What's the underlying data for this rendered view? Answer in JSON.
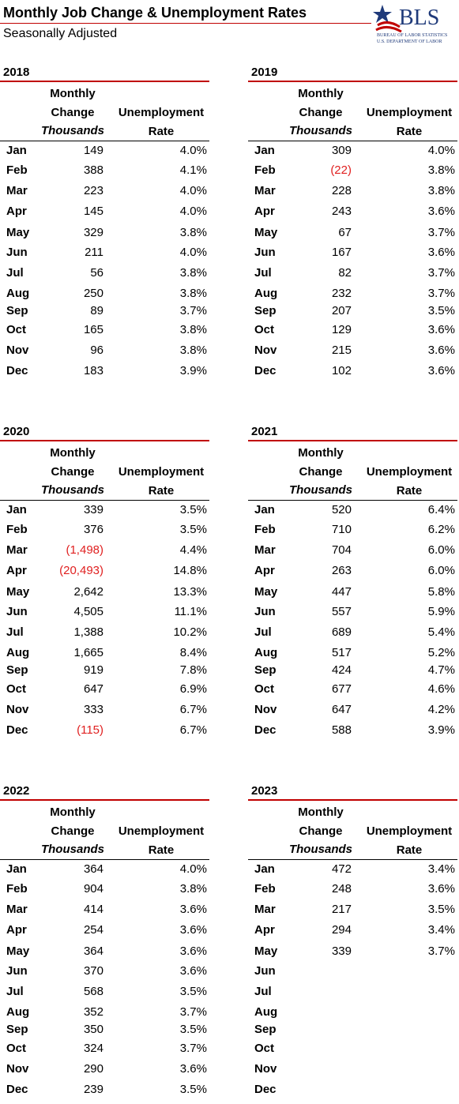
{
  "header": {
    "title": "Monthly Job Change & Unemployment Rates",
    "subtitle": "Seasonally Adjusted",
    "logo": {
      "name": "BLS",
      "line1": "BUREAU OF LABOR STATISTICS",
      "line2": "U.S. DEPARTMENT OF LABOR"
    }
  },
  "negative_color": "#e02020",
  "tables": [
    {
      "year": "2018",
      "columns": {
        "change": [
          "Monthly",
          "Change",
          "Thousands"
        ],
        "rate": [
          "Unemployment",
          "Rate"
        ]
      },
      "rows": [
        [
          "Jan",
          "149",
          "4.0%"
        ],
        [
          "Feb",
          "388",
          "4.1%"
        ],
        [
          "Mar",
          "223",
          "4.0%"
        ],
        [
          "Apr",
          "145",
          "4.0%"
        ],
        [
          "May",
          "329",
          "3.8%"
        ],
        [
          "Jun",
          "211",
          "4.0%"
        ],
        [
          "Jul",
          "56",
          "3.8%"
        ],
        [
          "Aug",
          "250",
          "3.8%"
        ],
        [
          "Sep",
          "89",
          "3.7%"
        ],
        [
          "Oct",
          "165",
          "3.8%"
        ],
        [
          "Nov",
          "96",
          "3.8%"
        ],
        [
          "Dec",
          "183",
          "3.9%"
        ]
      ]
    },
    {
      "year": "2019",
      "columns": {
        "change": [
          "Monthly",
          "Change",
          "Thousands"
        ],
        "rate": [
          "Unemployment",
          "Rate"
        ]
      },
      "rows": [
        [
          "Jan",
          "309",
          "4.0%"
        ],
        [
          "Feb",
          "(22)",
          "3.8%"
        ],
        [
          "Mar",
          "228",
          "3.8%"
        ],
        [
          "Apr",
          "243",
          "3.6%"
        ],
        [
          "May",
          "67",
          "3.7%"
        ],
        [
          "Jun",
          "167",
          "3.6%"
        ],
        [
          "Jul",
          "82",
          "3.7%"
        ],
        [
          "Aug",
          "232",
          "3.7%"
        ],
        [
          "Sep",
          "207",
          "3.5%"
        ],
        [
          "Oct",
          "129",
          "3.6%"
        ],
        [
          "Nov",
          "215",
          "3.6%"
        ],
        [
          "Dec",
          "102",
          "3.6%"
        ]
      ]
    },
    {
      "year": "2020",
      "columns": {
        "change": [
          "Monthly",
          "Change",
          "Thousands"
        ],
        "rate": [
          "Unemployment",
          "Rate"
        ]
      },
      "rows": [
        [
          "Jan",
          "339",
          "3.5%"
        ],
        [
          "Feb",
          "376",
          "3.5%"
        ],
        [
          "Mar",
          "(1,498)",
          "4.4%"
        ],
        [
          "Apr",
          "(20,493)",
          "14.8%"
        ],
        [
          "May",
          "2,642",
          "13.3%"
        ],
        [
          "Jun",
          "4,505",
          "11.1%"
        ],
        [
          "Jul",
          "1,388",
          "10.2%"
        ],
        [
          "Aug",
          "1,665",
          "8.4%"
        ],
        [
          "Sep",
          "919",
          "7.8%"
        ],
        [
          "Oct",
          "647",
          "6.9%"
        ],
        [
          "Nov",
          "333",
          "6.7%"
        ],
        [
          "Dec",
          "(115)",
          "6.7%"
        ]
      ]
    },
    {
      "year": "2021",
      "columns": {
        "change": [
          "Monthly",
          "Change",
          "Thousands"
        ],
        "rate": [
          "Unemployment",
          "Rate"
        ]
      },
      "rows": [
        [
          "Jan",
          "520",
          "6.4%"
        ],
        [
          "Feb",
          "710",
          "6.2%"
        ],
        [
          "Mar",
          "704",
          "6.0%"
        ],
        [
          "Apr",
          "263",
          "6.0%"
        ],
        [
          "May",
          "447",
          "5.8%"
        ],
        [
          "Jun",
          "557",
          "5.9%"
        ],
        [
          "Jul",
          "689",
          "5.4%"
        ],
        [
          "Aug",
          "517",
          "5.2%"
        ],
        [
          "Sep",
          "424",
          "4.7%"
        ],
        [
          "Oct",
          "677",
          "4.6%"
        ],
        [
          "Nov",
          "647",
          "4.2%"
        ],
        [
          "Dec",
          "588",
          "3.9%"
        ]
      ]
    },
    {
      "year": "2022",
      "columns": {
        "change": [
          "Monthly",
          "Change",
          "Thousands"
        ],
        "rate": [
          "Unemployment",
          "Rate"
        ]
      },
      "rows": [
        [
          "Jan",
          "364",
          "4.0%"
        ],
        [
          "Feb",
          "904",
          "3.8%"
        ],
        [
          "Mar",
          "414",
          "3.6%"
        ],
        [
          "Apr",
          "254",
          "3.6%"
        ],
        [
          "May",
          "364",
          "3.6%"
        ],
        [
          "Jun",
          "370",
          "3.6%"
        ],
        [
          "Jul",
          "568",
          "3.5%"
        ],
        [
          "Aug",
          "352",
          "3.7%"
        ],
        [
          "Sep",
          "350",
          "3.5%"
        ],
        [
          "Oct",
          "324",
          "3.7%"
        ],
        [
          "Nov",
          "290",
          "3.6%"
        ],
        [
          "Dec",
          "239",
          "3.5%"
        ]
      ]
    },
    {
      "year": "2023",
      "columns": {
        "change": [
          "Monthly",
          "Change",
          "Thousands"
        ],
        "rate": [
          "Unemployment",
          "Rate"
        ]
      },
      "rows": [
        [
          "Jan",
          "472",
          "3.4%"
        ],
        [
          "Feb",
          "248",
          "3.6%"
        ],
        [
          "Mar",
          "217",
          "3.5%"
        ],
        [
          "Apr",
          "294",
          "3.4%"
        ],
        [
          "May",
          "339",
          "3.7%"
        ],
        [
          "Jun"
        ],
        [
          "Jul"
        ],
        [
          "Aug"
        ],
        [
          "Sep"
        ],
        [
          "Oct"
        ],
        [
          "Nov"
        ],
        [
          "Dec"
        ]
      ]
    }
  ]
}
